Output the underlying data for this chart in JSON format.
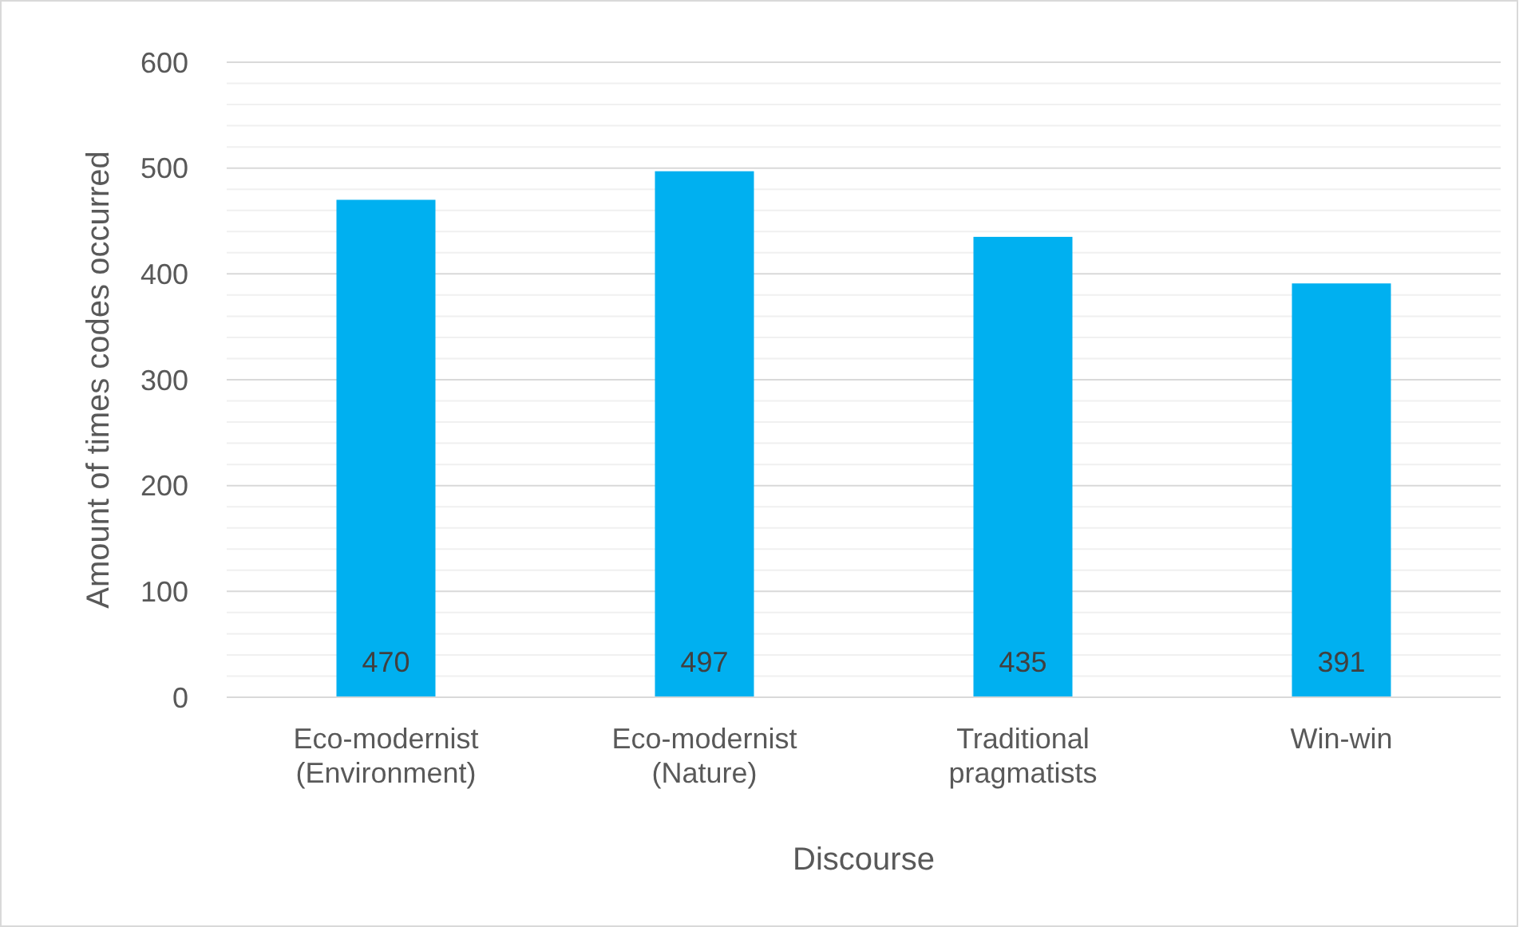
{
  "chart_data": {
    "type": "bar",
    "xlabel": "Discourse",
    "ylabel": "Amount of times codes occurred",
    "categories": [
      "Eco-modernist (Environment)",
      "Eco-modernist (Nature)",
      "Traditional pragmatists",
      "Win-win"
    ],
    "values": [
      470,
      497,
      435,
      391
    ],
    "color": "#00b0f0",
    "data_labels": true,
    "grid": "y",
    "ylim": [
      0,
      600
    ],
    "yticks": [
      0,
      {
        "value": 20,
        "label": null
      },
      {
        "value": 40,
        "label": null
      },
      {
        "value": 60,
        "label": null
      },
      {
        "value": 80,
        "label": null
      },
      100,
      {
        "value": 120,
        "label": null
      },
      {
        "value": 140,
        "label": null
      },
      {
        "value": 160,
        "label": null
      },
      {
        "value": 180,
        "label": null
      },
      200,
      {
        "value": 220,
        "label": null
      },
      {
        "value": 240,
        "label": null
      },
      {
        "value": 260,
        "label": null
      },
      {
        "value": 280,
        "label": null
      },
      300,
      {
        "value": 320,
        "label": null
      },
      {
        "value": 340,
        "label": null
      },
      {
        "value": 360,
        "label": null
      },
      {
        "value": 380,
        "label": null
      },
      400,
      {
        "value": 420,
        "label": null
      },
      {
        "value": 440,
        "label": null
      },
      {
        "value": 460,
        "label": null
      },
      {
        "value": 480,
        "label": null
      },
      500,
      {
        "value": 520,
        "label": null
      },
      {
        "value": 540,
        "label": null
      },
      {
        "value": 560,
        "label": null
      },
      {
        "value": 580,
        "label": null
      },
      600
    ]
  }
}
